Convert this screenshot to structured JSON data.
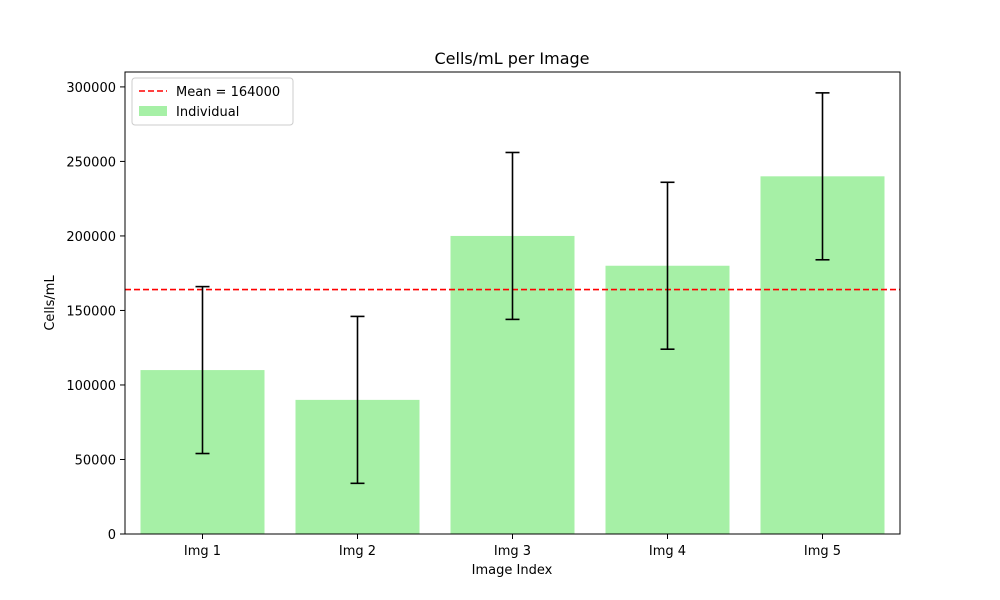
{
  "chart_data": {
    "type": "bar",
    "title": "Cells/mL per Image",
    "xlabel": "Image Index",
    "ylabel": "Cells/mL",
    "categories": [
      "Img 1",
      "Img 2",
      "Img 3",
      "Img 4",
      "Img 5"
    ],
    "series": [
      {
        "name": "Individual",
        "values": [
          110000,
          90000,
          200000,
          180000,
          240000
        ],
        "error_low": [
          54000,
          34000,
          144000,
          124000,
          184000
        ],
        "error_high": [
          166000,
          146000,
          256000,
          236000,
          296000
        ],
        "color": "#a6f0a6"
      }
    ],
    "reference_line": {
      "name": "Mean = 164000",
      "value": 164000,
      "color": "#ff0000",
      "style": "dashed"
    },
    "ylim": [
      0,
      310000
    ],
    "yticks": [
      0,
      50000,
      100000,
      150000,
      200000,
      250000,
      300000
    ],
    "grid": false,
    "legend_position": "upper-left",
    "error_bar_color": "#000000"
  }
}
